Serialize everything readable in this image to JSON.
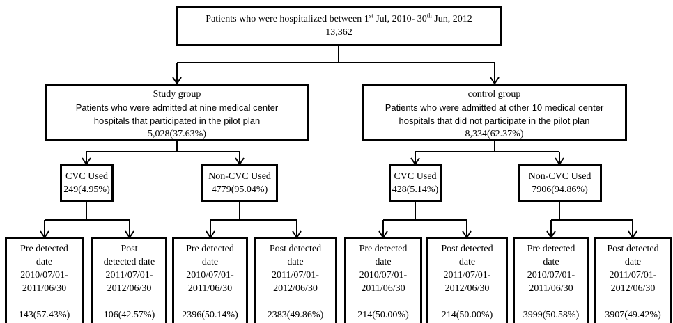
{
  "root": {
    "title_parts": [
      "Patients who were hospitalized between 1",
      "st",
      " Jul, 2010- 30",
      "th",
      " Jun, 2012"
    ],
    "count": "13,362"
  },
  "groups": [
    {
      "name": "Study group",
      "lines": [
        "Patients who were admitted at nine medical center",
        "hospitals that participated in the pilot plan"
      ],
      "count": "5,028(37.63%)",
      "children": [
        {
          "label": "CVC Used",
          "count": "249(4.95%)",
          "children": [
            {
              "lines": [
                "Pre detected",
                "date",
                "2010/07/01-",
                "2011/06/30"
              ],
              "count": "143(57.43%)"
            },
            {
              "lines": [
                "Post",
                "detected date",
                "2011/07/01-",
                "2012/06/30"
              ],
              "count": "106(42.57%)"
            }
          ]
        },
        {
          "label": "Non-CVC Used",
          "count": "4779(95.04%)",
          "children": [
            {
              "lines": [
                "Pre detected",
                "date",
                "2010/07/01-",
                "2011/06/30"
              ],
              "count": "2396(50.14%)"
            },
            {
              "lines": [
                "Post detected",
                "date",
                "2011/07/01-",
                "2012/06/30"
              ],
              "count": "2383(49.86%)"
            }
          ]
        }
      ]
    },
    {
      "name": "control group",
      "lines": [
        "Patients who were admitted at other 10 medical center",
        "hospitals that did not participate in the pilot plan"
      ],
      "count": "8,334(62.37%)",
      "children": [
        {
          "label": "CVC Used",
          "count": "428(5.14%)",
          "children": [
            {
              "lines": [
                "Pre detected",
                "date",
                "2010/07/01-",
                "2011/06/30"
              ],
              "count": "214(50.00%)"
            },
            {
              "lines": [
                "Post detected",
                "date",
                "2011/07/01-",
                "2012/06/30"
              ],
              "count": "214(50.00%)"
            }
          ]
        },
        {
          "label": "Non-CVC Used",
          "count": "7906(94.86%)",
          "children": [
            {
              "lines": [
                "Pre detected",
                "date",
                "2010/07/01-",
                "2011/06/30"
              ],
              "count": "3999(50.58%)"
            },
            {
              "lines": [
                "Post detected",
                "date",
                "2011/07/01-",
                "2012/06/30"
              ],
              "count": "3907(49.42%)"
            }
          ]
        }
      ]
    }
  ]
}
